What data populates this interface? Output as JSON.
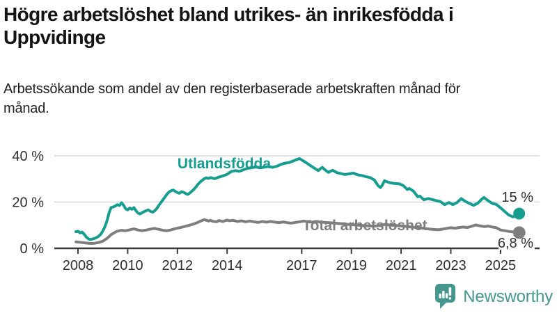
{
  "header": {
    "title": "Högre arbetslöshet bland utrikes- än inrikesfödda i Uppvidinge",
    "subtitle": "Arbetssökande som andel av den registerbaserade arbetskraften månad för månad."
  },
  "footer": {
    "brand": "Newsworthy"
  },
  "icons": {
    "brand": "newsworthy-bar-chart-speech-bubble-icon"
  },
  "colors": {
    "foreign_line": "#169d90",
    "total_line": "#7e7e7e",
    "grid": "#d8d8d8",
    "axis": "#3b3b3b",
    "brand_teal": "#45968f",
    "title_text": "#141414"
  },
  "chart_data": {
    "type": "line",
    "unit": "%",
    "grid": "horizontal-only",
    "legend_position": "inline-labels",
    "x_axis": {
      "ticks": [
        {
          "value": 2008,
          "label": "2008"
        },
        {
          "value": 2010,
          "label": "2010"
        },
        {
          "value": 2012,
          "label": "2012"
        },
        {
          "value": 2014,
          "label": "2014"
        },
        {
          "value": 2017,
          "label": "2017"
        },
        {
          "value": 2019,
          "label": "2019"
        },
        {
          "value": 2021,
          "label": "2021"
        },
        {
          "value": 2023,
          "label": "2023"
        },
        {
          "value": 2025,
          "label": "2025"
        }
      ]
    },
    "y_axis": {
      "range": [
        0,
        42
      ],
      "ticks": [
        {
          "value": 0,
          "label": "0 %"
        },
        {
          "value": 20,
          "label": "20 %"
        },
        {
          "value": 40,
          "label": "40 %"
        }
      ]
    },
    "series": [
      {
        "id": "total",
        "name": "Total arbetslöshet",
        "color": "#7e7e7e",
        "end_label": "6,8 %",
        "end_value": 6.8,
        "points": [
          [
            2007.92,
            2.8
          ],
          [
            2008.0,
            2.7
          ],
          [
            2008.17,
            2.5
          ],
          [
            2008.33,
            2.3
          ],
          [
            2008.5,
            2.1
          ],
          [
            2008.67,
            2.2
          ],
          [
            2008.83,
            2.5
          ],
          [
            2009.0,
            3.1
          ],
          [
            2009.17,
            4.3
          ],
          [
            2009.33,
            5.9
          ],
          [
            2009.5,
            7.0
          ],
          [
            2009.58,
            7.4
          ],
          [
            2009.75,
            7.8
          ],
          [
            2009.92,
            7.6
          ],
          [
            2010.08,
            8.0
          ],
          [
            2010.25,
            8.4
          ],
          [
            2010.42,
            7.9
          ],
          [
            2010.58,
            7.6
          ],
          [
            2010.75,
            7.9
          ],
          [
            2010.92,
            8.3
          ],
          [
            2011.08,
            8.6
          ],
          [
            2011.25,
            8.2
          ],
          [
            2011.42,
            7.8
          ],
          [
            2011.58,
            7.6
          ],
          [
            2011.75,
            8.0
          ],
          [
            2011.92,
            8.5
          ],
          [
            2012.08,
            8.9
          ],
          [
            2012.25,
            9.3
          ],
          [
            2012.42,
            9.8
          ],
          [
            2012.58,
            10.3
          ],
          [
            2012.75,
            10.9
          ],
          [
            2012.92,
            11.7
          ],
          [
            2013.08,
            12.4
          ],
          [
            2013.17,
            12.1
          ],
          [
            2013.25,
            11.8
          ],
          [
            2013.33,
            12.1
          ],
          [
            2013.42,
            11.7
          ],
          [
            2013.58,
            11.5
          ],
          [
            2013.67,
            12.0
          ],
          [
            2013.83,
            11.6
          ],
          [
            2014.0,
            12.2
          ],
          [
            2014.08,
            11.9
          ],
          [
            2014.25,
            12.1
          ],
          [
            2014.42,
            11.6
          ],
          [
            2014.58,
            11.9
          ],
          [
            2014.75,
            11.5
          ],
          [
            2014.92,
            11.8
          ],
          [
            2015.08,
            11.5
          ],
          [
            2015.25,
            11.2
          ],
          [
            2015.42,
            11.6
          ],
          [
            2015.58,
            11.3
          ],
          [
            2015.75,
            11.6
          ],
          [
            2015.92,
            11.3
          ],
          [
            2016.08,
            11.1
          ],
          [
            2016.25,
            11.4
          ],
          [
            2016.42,
            11.1
          ],
          [
            2016.58,
            10.9
          ],
          [
            2016.75,
            11.2
          ],
          [
            2016.92,
            11.5
          ],
          [
            2017.08,
            11.8
          ],
          [
            2017.25,
            11.5
          ],
          [
            2017.42,
            11.3
          ],
          [
            2017.58,
            11.6
          ],
          [
            2017.75,
            11.4
          ],
          [
            2017.92,
            11.2
          ],
          [
            2018.17,
            11.0
          ],
          [
            2018.42,
            10.8
          ],
          [
            2018.67,
            10.6
          ],
          [
            2018.92,
            10.3
          ],
          [
            2019.17,
            10.1
          ],
          [
            2019.42,
            9.9
          ],
          [
            2019.67,
            9.7
          ],
          [
            2019.92,
            9.6
          ],
          [
            2020.17,
            9.9
          ],
          [
            2020.33,
            10.3
          ],
          [
            2020.5,
            10.1
          ],
          [
            2020.75,
            9.9
          ],
          [
            2021.0,
            9.7
          ],
          [
            2021.25,
            9.4
          ],
          [
            2021.5,
            9.1
          ],
          [
            2021.75,
            8.9
          ],
          [
            2022.0,
            8.5
          ],
          [
            2022.25,
            8.2
          ],
          [
            2022.5,
            8.0
          ],
          [
            2022.67,
            8.3
          ],
          [
            2022.83,
            8.6
          ],
          [
            2023.0,
            8.9
          ],
          [
            2023.17,
            8.7
          ],
          [
            2023.33,
            9.0
          ],
          [
            2023.5,
            9.2
          ],
          [
            2023.67,
            9.0
          ],
          [
            2023.83,
            9.5
          ],
          [
            2024.0,
            10.1
          ],
          [
            2024.17,
            9.7
          ],
          [
            2024.33,
            9.4
          ],
          [
            2024.5,
            9.6
          ],
          [
            2024.67,
            9.2
          ],
          [
            2024.83,
            8.9
          ],
          [
            2025.0,
            7.9
          ],
          [
            2025.17,
            7.6
          ],
          [
            2025.33,
            7.3
          ],
          [
            2025.5,
            7.1
          ],
          [
            2025.67,
            6.9
          ],
          [
            2025.75,
            6.8
          ]
        ]
      },
      {
        "id": "foreign",
        "name": "Utlandsfödda",
        "color": "#169d90",
        "end_label": "15 %",
        "end_value": 15,
        "points": [
          [
            2007.92,
            7.2
          ],
          [
            2008.0,
            7.4
          ],
          [
            2008.08,
            6.7
          ],
          [
            2008.17,
            7.0
          ],
          [
            2008.25,
            6.1
          ],
          [
            2008.33,
            4.9
          ],
          [
            2008.42,
            4.1
          ],
          [
            2008.5,
            3.8
          ],
          [
            2008.58,
            4.0
          ],
          [
            2008.67,
            4.3
          ],
          [
            2008.75,
            4.7
          ],
          [
            2008.83,
            5.2
          ],
          [
            2008.92,
            6.1
          ],
          [
            2009.0,
            7.5
          ],
          [
            2009.08,
            9.3
          ],
          [
            2009.17,
            12.0
          ],
          [
            2009.25,
            15.3
          ],
          [
            2009.33,
            17.6
          ],
          [
            2009.42,
            17.9
          ],
          [
            2009.5,
            18.3
          ],
          [
            2009.58,
            18.9
          ],
          [
            2009.67,
            18.5
          ],
          [
            2009.75,
            19.7
          ],
          [
            2009.83,
            18.7
          ],
          [
            2009.92,
            17.1
          ],
          [
            2010.0,
            16.6
          ],
          [
            2010.08,
            17.4
          ],
          [
            2010.17,
            16.9
          ],
          [
            2010.25,
            17.6
          ],
          [
            2010.33,
            16.3
          ],
          [
            2010.42,
            15.2
          ],
          [
            2010.5,
            14.9
          ],
          [
            2010.58,
            15.4
          ],
          [
            2010.67,
            15.9
          ],
          [
            2010.75,
            16.3
          ],
          [
            2010.83,
            16.6
          ],
          [
            2010.92,
            16.0
          ],
          [
            2011.0,
            15.6
          ],
          [
            2011.08,
            16.2
          ],
          [
            2011.17,
            17.2
          ],
          [
            2011.25,
            18.5
          ],
          [
            2011.33,
            19.7
          ],
          [
            2011.42,
            21.0
          ],
          [
            2011.5,
            22.2
          ],
          [
            2011.58,
            23.4
          ],
          [
            2011.67,
            24.4
          ],
          [
            2011.75,
            24.9
          ],
          [
            2011.83,
            25.2
          ],
          [
            2011.92,
            24.6
          ],
          [
            2012.0,
            24.1
          ],
          [
            2012.08,
            23.8
          ],
          [
            2012.17,
            24.5
          ],
          [
            2012.25,
            24.2
          ],
          [
            2012.33,
            23.7
          ],
          [
            2012.42,
            23.3
          ],
          [
            2012.5,
            23.9
          ],
          [
            2012.58,
            24.7
          ],
          [
            2012.67,
            25.6
          ],
          [
            2012.75,
            26.6
          ],
          [
            2012.83,
            27.7
          ],
          [
            2012.92,
            28.7
          ],
          [
            2013.0,
            29.4
          ],
          [
            2013.08,
            30.1
          ],
          [
            2013.17,
            30.5
          ],
          [
            2013.25,
            30.2
          ],
          [
            2013.33,
            30.6
          ],
          [
            2013.5,
            30.1
          ],
          [
            2013.67,
            30.8
          ],
          [
            2013.83,
            31.3
          ],
          [
            2014.0,
            32.0
          ],
          [
            2014.17,
            33.2
          ],
          [
            2014.33,
            33.6
          ],
          [
            2014.5,
            33.3
          ],
          [
            2014.67,
            34.0
          ],
          [
            2014.83,
            34.6
          ],
          [
            2015.0,
            34.9
          ],
          [
            2015.17,
            35.2
          ],
          [
            2015.33,
            34.8
          ],
          [
            2015.5,
            35.1
          ],
          [
            2015.67,
            35.4
          ],
          [
            2015.83,
            35.0
          ],
          [
            2016.0,
            35.5
          ],
          [
            2016.17,
            36.3
          ],
          [
            2016.33,
            36.8
          ],
          [
            2016.5,
            37.1
          ],
          [
            2016.67,
            37.8
          ],
          [
            2016.83,
            38.5
          ],
          [
            2016.92,
            38.8
          ],
          [
            2017.0,
            38.2
          ],
          [
            2017.17,
            37.1
          ],
          [
            2017.33,
            35.9
          ],
          [
            2017.5,
            34.7
          ],
          [
            2017.67,
            33.6
          ],
          [
            2017.75,
            34.4
          ],
          [
            2017.83,
            35.0
          ],
          [
            2017.92,
            34.1
          ],
          [
            2018.0,
            33.4
          ],
          [
            2018.08,
            32.8
          ],
          [
            2018.17,
            33.4
          ],
          [
            2018.25,
            33.7
          ],
          [
            2018.42,
            32.7
          ],
          [
            2018.58,
            32.3
          ],
          [
            2018.75,
            31.9
          ],
          [
            2018.92,
            32.2
          ],
          [
            2019.08,
            32.5
          ],
          [
            2019.25,
            31.8
          ],
          [
            2019.42,
            31.5
          ],
          [
            2019.58,
            31.0
          ],
          [
            2019.75,
            30.6
          ],
          [
            2019.92,
            29.6
          ],
          [
            2020.08,
            27.0
          ],
          [
            2020.17,
            26.3
          ],
          [
            2020.25,
            27.4
          ],
          [
            2020.33,
            29.2
          ],
          [
            2020.42,
            28.8
          ],
          [
            2020.58,
            28.3
          ],
          [
            2020.75,
            28.0
          ],
          [
            2020.92,
            27.9
          ],
          [
            2021.08,
            27.2
          ],
          [
            2021.25,
            25.4
          ],
          [
            2021.33,
            25.9
          ],
          [
            2021.5,
            24.7
          ],
          [
            2021.67,
            22.3
          ],
          [
            2021.75,
            22.6
          ],
          [
            2021.92,
            21.0
          ],
          [
            2022.08,
            21.5
          ],
          [
            2022.25,
            21.1
          ],
          [
            2022.42,
            20.6
          ],
          [
            2022.58,
            20.2
          ],
          [
            2022.75,
            18.9
          ],
          [
            2022.92,
            19.8
          ],
          [
            2023.08,
            18.9
          ],
          [
            2023.25,
            19.8
          ],
          [
            2023.42,
            21.5
          ],
          [
            2023.58,
            20.3
          ],
          [
            2023.75,
            19.4
          ],
          [
            2023.92,
            18.6
          ],
          [
            2024.08,
            19.5
          ],
          [
            2024.25,
            21.3
          ],
          [
            2024.33,
            22.0
          ],
          [
            2024.5,
            20.6
          ],
          [
            2024.67,
            19.4
          ],
          [
            2024.83,
            19.0
          ],
          [
            2025.0,
            17.5
          ],
          [
            2025.17,
            15.9
          ],
          [
            2025.33,
            14.4
          ],
          [
            2025.5,
            13.6
          ],
          [
            2025.62,
            13.9
          ],
          [
            2025.75,
            15.0
          ]
        ]
      }
    ]
  }
}
